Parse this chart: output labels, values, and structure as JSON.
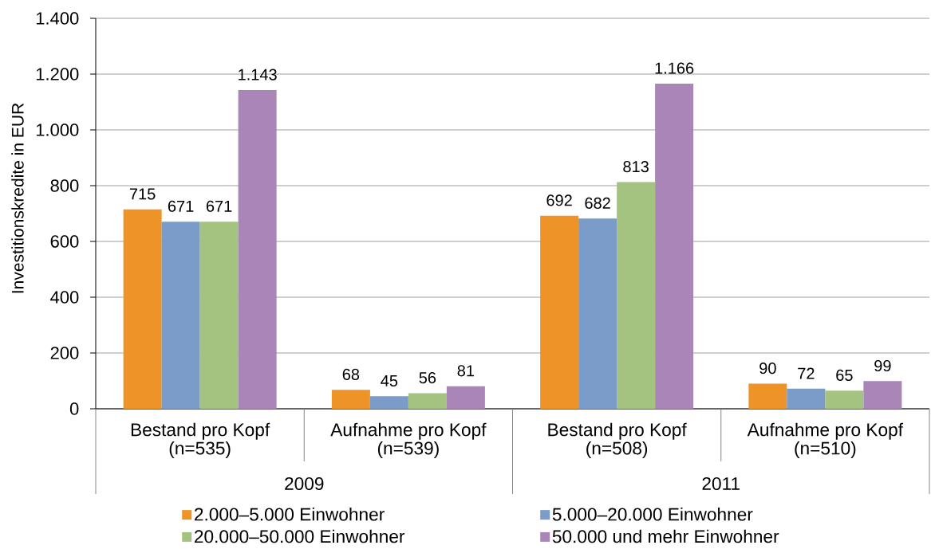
{
  "chart_data": {
    "type": "bar",
    "ylabel": "Investitionskredite in EUR",
    "categories": [
      "Bestand pro Kopf (n=535)",
      "Aufnahme pro Kopf (n=539)",
      "Bestand pro Kopf (n=508)",
      "Aufnahme pro Kopf (n=510)"
    ],
    "annotations": [
      "2009",
      "2011"
    ],
    "series": [
      {
        "name": "2.000–5.000 Einwohner",
        "color": "#ee9328",
        "values": [
          715,
          68,
          692,
          90
        ],
        "value_labels": [
          "715",
          "68",
          "692",
          "90"
        ]
      },
      {
        "name": "5.000–20.000 Einwohner",
        "color": "#7b9bc8",
        "values": [
          671,
          45,
          682,
          72
        ],
        "value_labels": [
          "671",
          "45",
          "682",
          "72"
        ]
      },
      {
        "name": "20.000–50.000 Einwohner",
        "color": "#a4c381",
        "values": [
          671,
          56,
          813,
          65
        ],
        "value_labels": [
          "671",
          "56",
          "813",
          "65"
        ]
      },
      {
        "name": "50.000 und mehr Einwohner",
        "color": "#a985b8",
        "values": [
          1143,
          81,
          1166,
          99
        ],
        "value_labels": [
          "1.143",
          "81",
          "1.166",
          "99"
        ]
      }
    ],
    "ylim": [
      0,
      1400
    ],
    "yticks": [
      0,
      200,
      400,
      600,
      800,
      {
        "value": 1000,
        "label": "1.000"
      },
      {
        "value": 1200,
        "label": "1.200"
      },
      {
        "value": 1400,
        "label": "1.400"
      }
    ],
    "grid": "y",
    "legend": "bottom"
  }
}
